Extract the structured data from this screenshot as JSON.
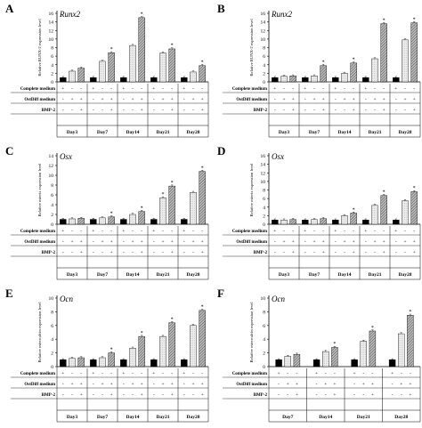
{
  "chart_data": [
    {
      "type": "bar",
      "panel": "A",
      "gene": "Runx2",
      "ylabel": "Relative RUNX-2 expression level",
      "ylim": [
        0,
        16
      ],
      "yticks": [
        0,
        2,
        4,
        6,
        8,
        10,
        12,
        14,
        16
      ],
      "row_labels": [
        "Complete medium",
        "OstDiff medium",
        "BMP-2"
      ],
      "signs": [
        [
          "+",
          "-",
          "-"
        ],
        [
          "-",
          "+",
          "+"
        ],
        [
          "-",
          "-",
          "+"
        ]
      ],
      "categories": [
        "Day3",
        "Day7",
        "Day14",
        "Day21",
        "Day28"
      ],
      "series": [
        {
          "values": [
            1,
            1,
            1,
            1,
            1
          ]
        },
        {
          "values": [
            2.5,
            4.8,
            8.5,
            6.7,
            2.3
          ]
        },
        {
          "values": [
            3.2,
            6.8,
            15.0,
            7.7,
            3.8
          ]
        }
      ],
      "stars": [
        [
          false,
          false,
          false
        ],
        [
          false,
          false,
          true
        ],
        [
          false,
          false,
          true
        ],
        [
          false,
          false,
          true
        ],
        [
          false,
          false,
          true
        ]
      ]
    },
    {
      "type": "bar",
      "panel": "B",
      "gene": "Runx2",
      "ylabel": "Relative RUNX-2 expression level",
      "ylim": [
        0,
        16
      ],
      "yticks": [
        0,
        2,
        4,
        6,
        8,
        10,
        12,
        14,
        16
      ],
      "row_labels": [
        "Complete medium",
        "OstDiff medium",
        "BMP-2"
      ],
      "signs": [
        [
          "+",
          "-",
          "-"
        ],
        [
          "-",
          "+",
          "+"
        ],
        [
          "-",
          "-",
          "+"
        ]
      ],
      "categories": [
        "Day3",
        "Day7",
        "Day14",
        "Day21",
        "Day28"
      ],
      "series": [
        {
          "values": [
            1,
            1,
            1,
            1,
            1
          ]
        },
        {
          "values": [
            1.3,
            1.4,
            2.0,
            5.4,
            9.8
          ]
        },
        {
          "values": [
            1.4,
            3.8,
            4.4,
            13.6,
            13.8
          ]
        }
      ],
      "stars": [
        [
          false,
          false,
          false
        ],
        [
          false,
          false,
          true
        ],
        [
          false,
          false,
          true
        ],
        [
          false,
          false,
          true
        ],
        [
          false,
          false,
          true
        ]
      ]
    },
    {
      "type": "bar",
      "panel": "C",
      "gene": "Osx",
      "ylabel": "Relative osterix expression level",
      "ylim": [
        0,
        14
      ],
      "yticks": [
        0,
        2,
        4,
        6,
        8,
        10,
        12,
        14
      ],
      "row_labels": [
        "Complete medium",
        "OstDiff medium",
        "BMP-2"
      ],
      "signs": [
        [
          "+",
          "-",
          "-"
        ],
        [
          "-",
          "+",
          "+"
        ],
        [
          "-",
          "-",
          "+"
        ]
      ],
      "categories": [
        "Day3",
        "Day7",
        "Day14",
        "Day21",
        "Day28"
      ],
      "series": [
        {
          "values": [
            1,
            1,
            1,
            1,
            1
          ]
        },
        {
          "values": [
            1.1,
            1.3,
            2.0,
            5.4,
            6.5
          ]
        },
        {
          "values": [
            1.2,
            1.5,
            2.6,
            7.8,
            10.8
          ]
        }
      ],
      "stars": [
        [
          false,
          false,
          false
        ],
        [
          false,
          false,
          true
        ],
        [
          false,
          false,
          true
        ],
        [
          false,
          true,
          true
        ],
        [
          false,
          false,
          true
        ]
      ]
    },
    {
      "type": "bar",
      "panel": "D",
      "gene": "Osx",
      "ylabel": "Relative osterix expression level",
      "ylim": [
        0,
        16
      ],
      "yticks": [
        0,
        2,
        4,
        6,
        8,
        10,
        12,
        14,
        16
      ],
      "row_labels": [
        "Complete medium",
        "OstDiff medium",
        "BMP-2"
      ],
      "signs": [
        [
          "+",
          "-",
          "-"
        ],
        [
          "-",
          "+",
          "+"
        ],
        [
          "-",
          "-",
          "+"
        ]
      ],
      "categories": [
        "Day3",
        "Day7",
        "Day14",
        "Day21",
        "Day28"
      ],
      "series": [
        {
          "values": [
            1,
            1,
            1,
            1,
            1
          ]
        },
        {
          "values": [
            1.0,
            1.1,
            2.0,
            4.4,
            5.5
          ]
        },
        {
          "values": [
            1.1,
            1.3,
            2.6,
            6.7,
            7.6
          ]
        }
      ],
      "stars": [
        [
          false,
          false,
          false
        ],
        [
          false,
          false,
          false
        ],
        [
          false,
          false,
          true
        ],
        [
          false,
          false,
          true
        ],
        [
          false,
          false,
          true
        ]
      ]
    },
    {
      "type": "bar",
      "panel": "E",
      "gene": "Ocn",
      "ylabel": "Relative osteocalcin expression level",
      "ylim": [
        0,
        10
      ],
      "yticks": [
        0,
        2,
        4,
        6,
        8,
        10
      ],
      "row_labels": [
        "Complete medium",
        "OstDiff medium",
        "BMP-2"
      ],
      "signs": [
        [
          "+",
          "-",
          "-"
        ],
        [
          "-",
          "+",
          "+"
        ],
        [
          "-",
          "-",
          "+"
        ]
      ],
      "categories": [
        "Day3",
        "Day7",
        "Day14",
        "Day21",
        "Day28"
      ],
      "series": [
        {
          "values": [
            1,
            1,
            1,
            1,
            1
          ]
        },
        {
          "values": [
            1.2,
            1.3,
            2.7,
            4.4,
            6.0
          ]
        },
        {
          "values": [
            1.3,
            2.0,
            4.4,
            6.4,
            8.2
          ]
        }
      ],
      "stars": [
        [
          false,
          false,
          false
        ],
        [
          false,
          false,
          true
        ],
        [
          false,
          false,
          true
        ],
        [
          false,
          false,
          true
        ],
        [
          false,
          false,
          true
        ]
      ]
    },
    {
      "type": "bar",
      "panel": "F",
      "gene": "Ocn",
      "ylabel": "Relative osteocalcin expression level",
      "ylim": [
        0,
        10
      ],
      "yticks": [
        0,
        2,
        4,
        6,
        8,
        10
      ],
      "row_labels": [
        "Complete medium",
        "OstDiff medium",
        "BMP-2"
      ],
      "signs": [
        [
          "+",
          "-",
          "-"
        ],
        [
          "-",
          "+",
          "+"
        ],
        [
          "-",
          "-",
          "+"
        ]
      ],
      "categories": [
        "Day7",
        "Day14",
        "Day21",
        "Day28"
      ],
      "series": [
        {
          "values": [
            1,
            1,
            1,
            1
          ]
        },
        {
          "values": [
            1.5,
            2.2,
            3.7,
            4.8
          ]
        },
        {
          "values": [
            1.8,
            2.8,
            5.2,
            7.5
          ]
        }
      ],
      "stars": [
        [
          false,
          false,
          false
        ],
        [
          false,
          false,
          true
        ],
        [
          false,
          false,
          true
        ],
        [
          false,
          false,
          true
        ]
      ]
    }
  ],
  "colors": {
    "black": "#000000",
    "light": "#e6e6e6",
    "hatch": "#8c8c8c",
    "axis": "#000000"
  }
}
